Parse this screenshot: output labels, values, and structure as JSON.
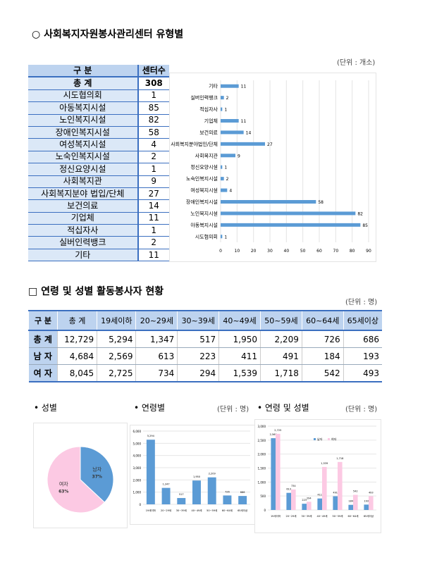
{
  "section1": {
    "title": "○ 사회복지자원봉사관리센터 유형별",
    "unit": "(단위 : 개소)",
    "table": {
      "headers": [
        "구  분",
        "센터수"
      ],
      "total": [
        "총   계",
        "308"
      ],
      "rows": [
        [
          "시도협의회",
          "1"
        ],
        [
          "아동복지시설",
          "85"
        ],
        [
          "노인복지시설",
          "82"
        ],
        [
          "장애인복지시설",
          "58"
        ],
        [
          "여성복지시설",
          "4"
        ],
        [
          "노숙인복지시설",
          "2"
        ],
        [
          "정신요양시설",
          "1"
        ],
        [
          "사회복지관",
          "9"
        ],
        [
          "사회복지분야 법입/단체",
          "27"
        ],
        [
          "보건의료",
          "14"
        ],
        [
          "기업체",
          "11"
        ],
        [
          "적십자사",
          "1"
        ],
        [
          "실버인력뱅크",
          "2"
        ],
        [
          "기타",
          "11"
        ]
      ]
    }
  },
  "section2": {
    "title": "□ 연령 및 성별 활동봉사자 현황",
    "unit": "(단위 : 명)",
    "table": {
      "headers": [
        "구 분",
        "총 계",
        "19세이하",
        "20~29세",
        "30~39세",
        "40~49세",
        "50~59세",
        "60~64세",
        "65세이상"
      ],
      "rows": [
        [
          "총 계",
          "12,729",
          "5,294",
          "1,347",
          "517",
          "1,950",
          "2,209",
          "726",
          "686"
        ],
        [
          "남 자",
          "4,684",
          "2,569",
          "613",
          "223",
          "411",
          "491",
          "184",
          "193"
        ],
        [
          "여 자",
          "8,045",
          "2,725",
          "734",
          "294",
          "1,539",
          "1,718",
          "542",
          "493"
        ]
      ]
    }
  },
  "bottom": {
    "gender_label": "• 성별",
    "age_label": "• 연령별",
    "age_unit": "(단위 : 명)",
    "agesex_label": "• 연령 및 성별",
    "agesex_unit": "(단위 : 명)"
  },
  "chart_data": [
    {
      "type": "bar",
      "orientation": "horizontal",
      "categories": [
        "시도협의회",
        "아동복지시설",
        "노인복지시설",
        "장애인복지시설",
        "여성복지시설",
        "노숙인복지시설",
        "정신요양시설",
        "사회복지관",
        "사회복지분야법인/단체",
        "보건의료",
        "기업체",
        "적십자사",
        "실버인력뱅크",
        "기타"
      ],
      "values": [
        1,
        85,
        82,
        58,
        4,
        2,
        1,
        9,
        27,
        14,
        11,
        1,
        2,
        11
      ],
      "xlim": [
        0,
        90
      ],
      "xticks": [
        0,
        10,
        20,
        30,
        40,
        50,
        60,
        70,
        80,
        90
      ],
      "grid": true,
      "color": "#5b9bd5"
    },
    {
      "type": "pie",
      "labels": [
        "남자",
        "여자"
      ],
      "values": [
        37,
        63
      ],
      "display": [
        "37%",
        "63%"
      ],
      "colors": [
        "#5b9bd5",
        "#fcc9e3"
      ]
    },
    {
      "type": "bar",
      "categories": [
        "19세이하",
        "20~29세",
        "30~39세",
        "40~49세",
        "50~59세",
        "60~64세",
        "65세이상"
      ],
      "values": [
        5294,
        1347,
        517,
        1950,
        2209,
        726,
        686
      ],
      "labels": [
        "5,294",
        "1,347",
        "517",
        "1,950",
        "2,209",
        "726",
        "686"
      ],
      "ylim": [
        0,
        6000
      ],
      "yticks": [
        "0",
        "1,000",
        "2,000",
        "3,000",
        "4,000",
        "5,000",
        "6,000"
      ],
      "grid": true,
      "color": "#5b9bd5"
    },
    {
      "type": "bar",
      "categories": [
        "19세이하",
        "20~29세",
        "30~39세",
        "40~49세",
        "50~59세",
        "60~64세",
        "65세이상"
      ],
      "series": [
        {
          "name": "남자",
          "values": [
            2569,
            613,
            223,
            411,
            491,
            184,
            193
          ],
          "labels": [
            "2,569",
            "613",
            "223",
            "411",
            "491",
            "184",
            "193"
          ],
          "color": "#5b9bd5"
        },
        {
          "name": "여자",
          "values": [
            2725,
            734,
            294,
            1539,
            1718,
            542,
            493
          ],
          "labels": [
            "2,725",
            "734",
            "294",
            "1,539",
            "1,718",
            "542",
            "493"
          ],
          "color": "#fcc9e3"
        }
      ],
      "ylim": [
        0,
        3000
      ],
      "yticks": [
        "0",
        "500",
        "1,000",
        "1,500",
        "2,000",
        "2,500",
        "3,000"
      ],
      "legend": "top-center",
      "grid": true
    }
  ]
}
